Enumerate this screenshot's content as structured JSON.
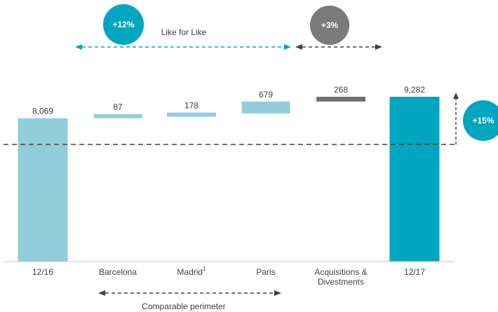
{
  "chart_data": {
    "type": "bar",
    "subtype": "waterfall",
    "categories": [
      "12/16",
      "Barcelona",
      "Madrid",
      "Paris",
      "Acquisitions & Divestments",
      "12/17"
    ],
    "values": [
      8069,
      87,
      178,
      679,
      268,
      9282
    ],
    "value_labels": [
      "8,069",
      "87",
      "178",
      "679",
      "268",
      "9,282"
    ],
    "kinds": [
      "total",
      "delta",
      "delta",
      "delta",
      "delta",
      "total"
    ],
    "superscripts": [
      "",
      "",
      "1",
      "",
      "",
      ""
    ],
    "axis_lines": [
      "Acquisitions &",
      "Divestments"
    ],
    "colors": {
      "light": "#92cddc",
      "total": "#00a6c0",
      "gray": "#6f6f6f",
      "dark_gray": "#7a7a7a",
      "teal_text": "#00a6c0"
    },
    "annotations": {
      "lfl_pct": "+12%",
      "lfl_label": "Like for Like",
      "acq_pct": "+3%",
      "total_pct": "+15%",
      "comparable_label": "Comparable perimeter"
    },
    "ylim": [
      0,
      10000
    ],
    "grid": false,
    "legend": "none"
  }
}
